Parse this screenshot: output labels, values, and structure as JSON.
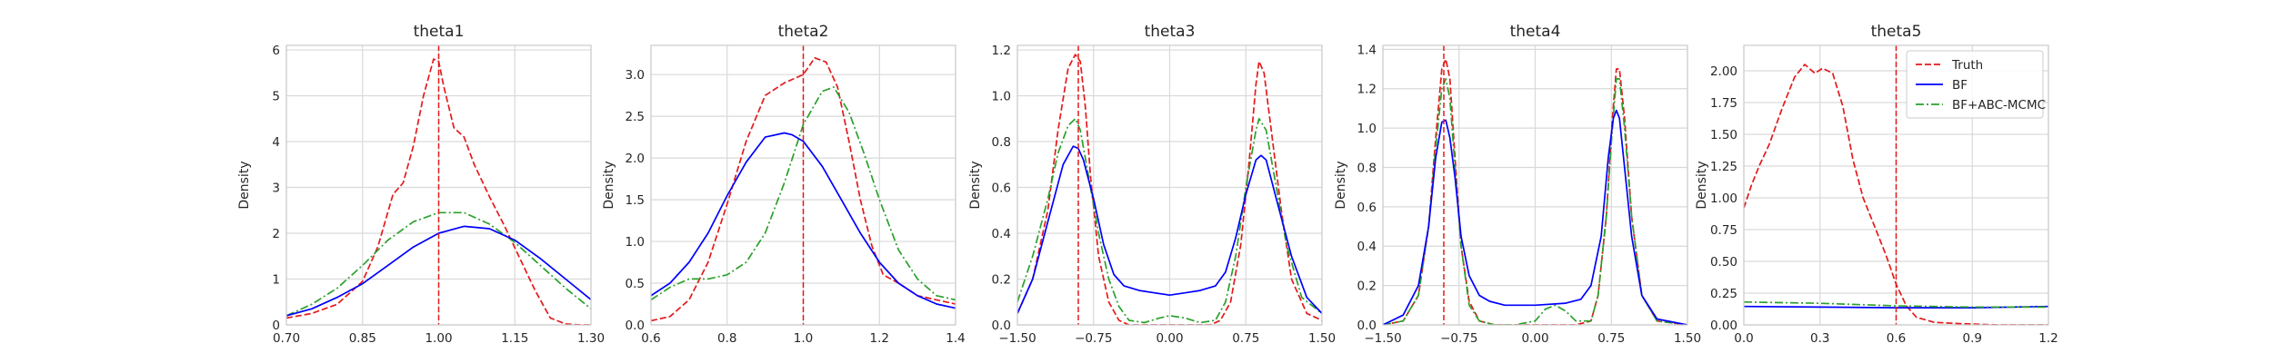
{
  "chart_data": [
    {
      "type": "line",
      "title": "theta1",
      "xlabel": "",
      "ylabel": "Density",
      "xlim": [
        0.7,
        1.3
      ],
      "ylim": [
        0,
        6.1
      ],
      "xticks": [
        0.7,
        0.85,
        1.0,
        1.15,
        1.3
      ],
      "xtick_labels": [
        "0.70",
        "0.85",
        "1.00",
        "1.15",
        "1.30"
      ],
      "yticks": [
        0,
        1,
        2,
        3,
        4,
        5,
        6
      ],
      "ytick_labels": [
        "0",
        "1",
        "2",
        "3",
        "4",
        "5",
        "6"
      ],
      "vline": 1.0,
      "series": [
        {
          "name": "Truth",
          "style": "dashed",
          "color": "#e41a1c",
          "x": [
            0.7,
            0.75,
            0.8,
            0.85,
            0.88,
            0.91,
            0.93,
            0.95,
            0.97,
            0.99,
            1.0,
            1.01,
            1.03,
            1.05,
            1.07,
            1.1,
            1.13,
            1.16,
            1.19,
            1.22,
            1.25,
            1.28,
            1.3
          ],
          "y": [
            0.15,
            0.25,
            0.45,
            0.95,
            1.7,
            2.85,
            3.1,
            3.9,
            5.0,
            5.8,
            5.75,
            5.2,
            4.3,
            4.1,
            3.5,
            2.8,
            2.15,
            1.45,
            0.75,
            0.15,
            0.02,
            0.0,
            0.0
          ]
        },
        {
          "name": "",
          "style": "dashdot",
          "color": "#2ca02c",
          "x": [
            0.7,
            0.75,
            0.8,
            0.85,
            0.9,
            0.95,
            1.0,
            1.05,
            1.1,
            1.15,
            1.2,
            1.25,
            1.3
          ],
          "y": [
            0.2,
            0.45,
            0.8,
            1.3,
            1.85,
            2.25,
            2.45,
            2.45,
            2.2,
            1.8,
            1.3,
            0.8,
            0.35
          ]
        },
        {
          "name": "",
          "style": "solid",
          "color": "#0000ff",
          "x": [
            0.7,
            0.75,
            0.8,
            0.85,
            0.9,
            0.95,
            1.0,
            1.05,
            1.1,
            1.15,
            1.2,
            1.25,
            1.3
          ],
          "y": [
            0.2,
            0.35,
            0.6,
            0.9,
            1.3,
            1.7,
            2.0,
            2.15,
            2.1,
            1.85,
            1.45,
            1.0,
            0.55
          ]
        }
      ]
    },
    {
      "type": "line",
      "title": "theta2",
      "xlabel": "",
      "ylabel": "Density",
      "xlim": [
        0.6,
        1.4
      ],
      "ylim": [
        0,
        3.35
      ],
      "xticks": [
        0.6,
        0.8,
        1.0,
        1.2,
        1.4
      ],
      "xtick_labels": [
        "0.6",
        "0.8",
        "1.0",
        "1.2",
        "1.4"
      ],
      "yticks": [
        0,
        0.5,
        1.0,
        1.5,
        2.0,
        2.5,
        3.0
      ],
      "ytick_labels": [
        "0.0",
        "0.5",
        "1.0",
        "1.5",
        "2.0",
        "2.5",
        "3.0"
      ],
      "vline": 1.0,
      "series": [
        {
          "name": "Truth",
          "style": "dashed",
          "color": "#e41a1c",
          "x": [
            0.6,
            0.65,
            0.7,
            0.75,
            0.8,
            0.85,
            0.9,
            0.95,
            1.0,
            1.03,
            1.06,
            1.09,
            1.12,
            1.15,
            1.18,
            1.21,
            1.25,
            1.3,
            1.35,
            1.4
          ],
          "y": [
            0.05,
            0.1,
            0.3,
            0.75,
            1.45,
            2.2,
            2.75,
            2.9,
            3.0,
            3.2,
            3.15,
            2.85,
            2.2,
            1.5,
            0.95,
            0.6,
            0.5,
            0.35,
            0.3,
            0.25
          ]
        },
        {
          "name": "",
          "style": "dashdot",
          "color": "#2ca02c",
          "x": [
            0.6,
            0.65,
            0.7,
            0.75,
            0.8,
            0.85,
            0.9,
            0.95,
            1.0,
            1.05,
            1.08,
            1.12,
            1.16,
            1.2,
            1.25,
            1.3,
            1.35,
            1.4
          ],
          "y": [
            0.3,
            0.45,
            0.55,
            0.55,
            0.6,
            0.75,
            1.1,
            1.7,
            2.4,
            2.8,
            2.85,
            2.55,
            2.05,
            1.5,
            0.9,
            0.55,
            0.35,
            0.3
          ]
        },
        {
          "name": "",
          "style": "solid",
          "color": "#0000ff",
          "x": [
            0.6,
            0.65,
            0.7,
            0.75,
            0.8,
            0.85,
            0.9,
            0.95,
            0.97,
            1.0,
            1.05,
            1.1,
            1.15,
            1.2,
            1.25,
            1.3,
            1.35,
            1.4
          ],
          "y": [
            0.35,
            0.5,
            0.75,
            1.1,
            1.55,
            1.95,
            2.25,
            2.3,
            2.28,
            2.2,
            1.9,
            1.5,
            1.1,
            0.75,
            0.5,
            0.35,
            0.25,
            0.2
          ]
        }
      ]
    },
    {
      "type": "line",
      "title": "theta3",
      "xlabel": "",
      "ylabel": "Density",
      "xlim": [
        -1.5,
        1.5
      ],
      "ylim": [
        0,
        1.22
      ],
      "xticks": [
        -1.5,
        -0.75,
        0.0,
        0.75,
        1.5
      ],
      "xtick_labels": [
        "−1.50",
        "−0.75",
        "0.00",
        "0.75",
        "1.50"
      ],
      "yticks": [
        0,
        0.2,
        0.4,
        0.6,
        0.8,
        1.0,
        1.2
      ],
      "ytick_labels": [
        "0.0",
        "0.2",
        "0.4",
        "0.6",
        "0.8",
        "1.0",
        "1.2"
      ],
      "vline": -0.9,
      "series": [
        {
          "name": "Truth",
          "style": "dashed",
          "color": "#e41a1c",
          "x": [
            -1.5,
            -1.35,
            -1.2,
            -1.1,
            -1.0,
            -0.93,
            -0.88,
            -0.83,
            -0.78,
            -0.7,
            -0.6,
            -0.5,
            -0.4,
            -0.25,
            0.0,
            0.25,
            0.4,
            0.5,
            0.6,
            0.7,
            0.78,
            0.85,
            0.88,
            0.93,
            1.0,
            1.1,
            1.2,
            1.35,
            1.5
          ],
          "y": [
            0.05,
            0.2,
            0.5,
            0.85,
            1.12,
            1.18,
            1.15,
            0.95,
            0.65,
            0.3,
            0.1,
            0.02,
            0.0,
            0.0,
            0.0,
            0.0,
            0.0,
            0.02,
            0.1,
            0.35,
            0.7,
            1.05,
            1.15,
            1.1,
            0.85,
            0.5,
            0.2,
            0.05,
            0.02
          ]
        },
        {
          "name": "",
          "style": "dashdot",
          "color": "#2ca02c",
          "x": [
            -1.5,
            -1.35,
            -1.2,
            -1.1,
            -1.0,
            -0.93,
            -0.88,
            -0.8,
            -0.7,
            -0.6,
            -0.5,
            -0.4,
            -0.25,
            -0.1,
            0.0,
            0.15,
            0.3,
            0.45,
            0.55,
            0.65,
            0.75,
            0.85,
            0.88,
            0.95,
            1.05,
            1.15,
            1.3,
            1.5
          ],
          "y": [
            0.1,
            0.3,
            0.55,
            0.75,
            0.87,
            0.9,
            0.85,
            0.65,
            0.4,
            0.2,
            0.08,
            0.02,
            0.01,
            0.03,
            0.04,
            0.03,
            0.01,
            0.02,
            0.1,
            0.3,
            0.6,
            0.85,
            0.9,
            0.85,
            0.6,
            0.35,
            0.12,
            0.05
          ]
        },
        {
          "name": "",
          "style": "solid",
          "color": "#0000ff",
          "x": [
            -1.5,
            -1.35,
            -1.2,
            -1.05,
            -0.95,
            -0.9,
            -0.85,
            -0.75,
            -0.65,
            -0.55,
            -0.45,
            -0.3,
            -0.15,
            0.0,
            0.15,
            0.3,
            0.45,
            0.55,
            0.65,
            0.75,
            0.85,
            0.9,
            0.95,
            1.05,
            1.2,
            1.35,
            1.5
          ],
          "y": [
            0.05,
            0.2,
            0.45,
            0.7,
            0.78,
            0.77,
            0.72,
            0.55,
            0.35,
            0.22,
            0.17,
            0.15,
            0.14,
            0.13,
            0.14,
            0.15,
            0.17,
            0.23,
            0.38,
            0.57,
            0.72,
            0.74,
            0.72,
            0.55,
            0.3,
            0.12,
            0.05
          ]
        }
      ]
    },
    {
      "type": "line",
      "title": "theta4",
      "xlabel": "",
      "ylabel": "Density",
      "xlim": [
        -1.5,
        1.5
      ],
      "ylim": [
        0,
        1.42
      ],
      "xticks": [
        -1.5,
        -0.75,
        0.0,
        0.75,
        1.5
      ],
      "xtick_labels": [
        "−1.50",
        "−0.75",
        "0.00",
        "0.75",
        "1.50"
      ],
      "yticks": [
        0,
        0.2,
        0.4,
        0.6,
        0.8,
        1.0,
        1.2,
        1.4
      ],
      "ytick_labels": [
        "0.0",
        "0.2",
        "0.4",
        "0.6",
        "0.8",
        "1.0",
        "1.2",
        "1.4"
      ],
      "vline": -0.9,
      "series": [
        {
          "name": "Truth",
          "style": "dashed",
          "color": "#e41a1c",
          "x": [
            -1.5,
            -1.3,
            -1.15,
            -1.05,
            -0.98,
            -0.92,
            -0.88,
            -0.84,
            -0.79,
            -0.73,
            -0.65,
            -0.55,
            -0.4,
            0.0,
            0.4,
            0.55,
            0.62,
            0.7,
            0.76,
            0.8,
            0.83,
            0.88,
            0.95,
            1.05,
            1.2,
            1.5
          ],
          "y": [
            0.0,
            0.02,
            0.15,
            0.5,
            0.95,
            1.3,
            1.35,
            1.25,
            0.85,
            0.4,
            0.12,
            0.02,
            0.0,
            0.0,
            0.0,
            0.02,
            0.15,
            0.55,
            1.05,
            1.3,
            1.3,
            1.05,
            0.55,
            0.15,
            0.02,
            0.0
          ]
        },
        {
          "name": "",
          "style": "dashdot",
          "color": "#2ca02c",
          "x": [
            -1.5,
            -1.3,
            -1.15,
            -1.05,
            -0.98,
            -0.92,
            -0.88,
            -0.84,
            -0.79,
            -0.73,
            -0.65,
            -0.55,
            -0.4,
            -0.2,
            0.0,
            0.1,
            0.2,
            0.3,
            0.4,
            0.55,
            0.62,
            0.7,
            0.76,
            0.8,
            0.83,
            0.88,
            0.95,
            1.05,
            1.2,
            1.5
          ],
          "y": [
            0.0,
            0.02,
            0.15,
            0.5,
            0.9,
            1.2,
            1.25,
            1.15,
            0.8,
            0.4,
            0.1,
            0.02,
            0.0,
            0.0,
            0.02,
            0.08,
            0.1,
            0.07,
            0.02,
            0.02,
            0.15,
            0.55,
            1.0,
            1.25,
            1.25,
            1.0,
            0.55,
            0.15,
            0.02,
            0.0
          ]
        },
        {
          "name": "",
          "style": "solid",
          "color": "#0000ff",
          "x": [
            -1.5,
            -1.3,
            -1.15,
            -1.05,
            -0.98,
            -0.92,
            -0.88,
            -0.84,
            -0.79,
            -0.73,
            -0.65,
            -0.55,
            -0.45,
            -0.3,
            0.0,
            0.3,
            0.45,
            0.55,
            0.65,
            0.72,
            0.77,
            0.8,
            0.83,
            0.88,
            0.95,
            1.05,
            1.2,
            1.5
          ],
          "y": [
            0.0,
            0.05,
            0.2,
            0.5,
            0.85,
            1.03,
            1.04,
            0.95,
            0.75,
            0.45,
            0.25,
            0.15,
            0.12,
            0.1,
            0.1,
            0.11,
            0.13,
            0.2,
            0.45,
            0.85,
            1.05,
            1.09,
            1.05,
            0.8,
            0.45,
            0.15,
            0.03,
            0.0
          ]
        }
      ]
    },
    {
      "type": "line",
      "title": "theta5",
      "xlabel": "",
      "ylabel": "Density",
      "xlim": [
        0.0,
        1.2
      ],
      "ylim": [
        0,
        2.2
      ],
      "xticks": [
        0.0,
        0.3,
        0.6,
        0.9,
        1.2
      ],
      "xtick_labels": [
        "0.0",
        "0.3",
        "0.6",
        "0.9",
        "1.2"
      ],
      "yticks": [
        0,
        0.25,
        0.5,
        0.75,
        1.0,
        1.25,
        1.5,
        1.75,
        2.0
      ],
      "ytick_labels": [
        "0.00",
        "0.25",
        "0.50",
        "0.75",
        "1.00",
        "1.25",
        "1.50",
        "1.75",
        "2.00"
      ],
      "vline": 0.6,
      "legend": {
        "placement": "top-right",
        "entries": [
          "Truth",
          "BF",
          "BF+ABC-MCMC"
        ]
      },
      "series": [
        {
          "name": "Truth",
          "style": "dashed",
          "color": "#e41a1c",
          "x": [
            0.0,
            0.03,
            0.06,
            0.1,
            0.15,
            0.2,
            0.24,
            0.28,
            0.31,
            0.35,
            0.39,
            0.43,
            0.47,
            0.52,
            0.56,
            0.6,
            0.64,
            0.68,
            0.75,
            0.85,
            1.0,
            1.2
          ],
          "y": [
            0.92,
            1.1,
            1.25,
            1.42,
            1.7,
            1.95,
            2.05,
            1.98,
            2.02,
            1.98,
            1.72,
            1.3,
            1.0,
            0.75,
            0.55,
            0.32,
            0.15,
            0.06,
            0.02,
            0.01,
            0.0,
            0.0
          ]
        },
        {
          "name": "BF",
          "style": "solid",
          "color": "#0000ff",
          "x": [
            0.0,
            0.3,
            0.6,
            0.9,
            1.2
          ],
          "y": [
            0.145,
            0.14,
            0.135,
            0.135,
            0.145
          ]
        },
        {
          "name": "BF+ABC-MCMC",
          "style": "dashdot",
          "color": "#2ca02c",
          "x": [
            0.0,
            0.3,
            0.6,
            0.9,
            1.2
          ],
          "y": [
            0.18,
            0.17,
            0.15,
            0.14,
            0.14
          ]
        }
      ]
    }
  ]
}
